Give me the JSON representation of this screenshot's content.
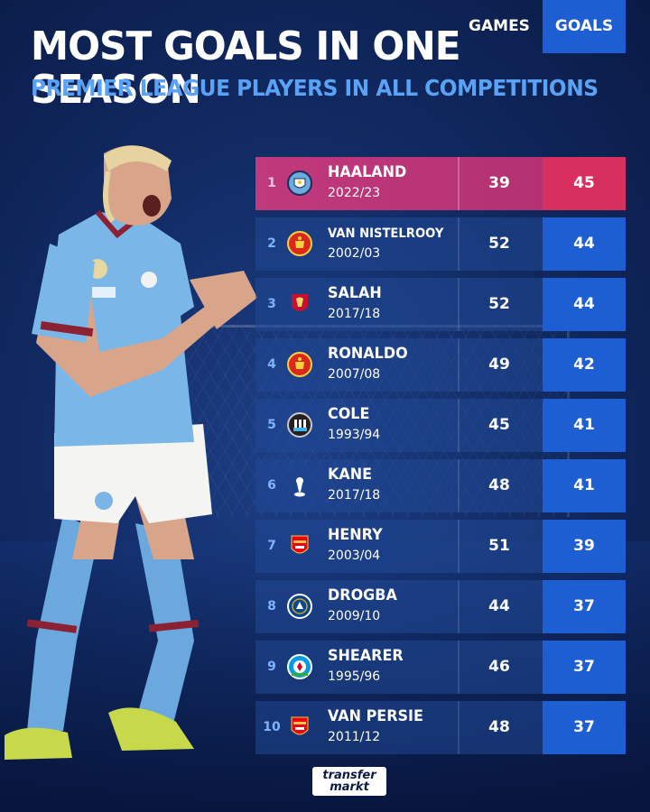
{
  "header": {
    "title": "MOST GOALS IN ONE SEASON",
    "subtitle": "PREMIER LEAGUE PLAYERS IN ALL COMPETITIONS"
  },
  "columns": {
    "games": "GAMES",
    "goals": "GOALS"
  },
  "colors": {
    "background": "#122c66",
    "accent_blue": "#5aa2f5",
    "highlight_row": "#c0397c",
    "highlight_goals": "#d7305e",
    "goals_cell": "#1d5fd2"
  },
  "rows": [
    {
      "rank": "1",
      "name": "HAALAND",
      "season": "2022/23",
      "games": "39",
      "goals": "45",
      "club_icon": "man-city-crest-icon"
    },
    {
      "rank": "2",
      "name": "VAN NISTELROOY",
      "season": "2002/03",
      "games": "52",
      "goals": "44",
      "club_icon": "man-utd-crest-icon"
    },
    {
      "rank": "3",
      "name": "SALAH",
      "season": "2017/18",
      "games": "52",
      "goals": "44",
      "club_icon": "liverpool-crest-icon"
    },
    {
      "rank": "4",
      "name": "RONALDO",
      "season": "2007/08",
      "games": "49",
      "goals": "42",
      "club_icon": "man-utd-crest-icon"
    },
    {
      "rank": "5",
      "name": "COLE",
      "season": "1993/94",
      "games": "45",
      "goals": "41",
      "club_icon": "newcastle-crest-icon"
    },
    {
      "rank": "6",
      "name": "KANE",
      "season": "2017/18",
      "games": "48",
      "goals": "41",
      "club_icon": "tottenham-crest-icon"
    },
    {
      "rank": "7",
      "name": "HENRY",
      "season": "2003/04",
      "games": "51",
      "goals": "39",
      "club_icon": "arsenal-crest-icon"
    },
    {
      "rank": "8",
      "name": "DROGBA",
      "season": "2009/10",
      "games": "44",
      "goals": "37",
      "club_icon": "chelsea-crest-icon"
    },
    {
      "rank": "9",
      "name": "SHEARER",
      "season": "1995/96",
      "games": "46",
      "goals": "37",
      "club_icon": "blackburn-crest-icon"
    },
    {
      "rank": "10",
      "name": "VAN PERSIE",
      "season": "2011/12",
      "games": "48",
      "goals": "37",
      "club_icon": "arsenal-crest-icon"
    }
  ],
  "footer": {
    "brand_line1": "transfer",
    "brand_line2": "markt"
  }
}
